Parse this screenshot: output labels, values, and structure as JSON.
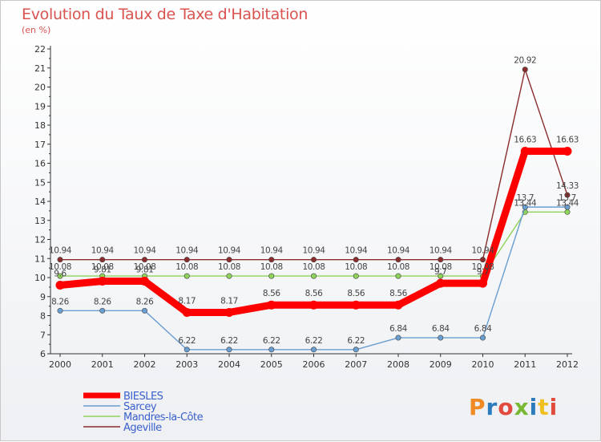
{
  "header": {
    "title": "Evolution du Taux de Taxe d'Habitation",
    "subtitle": "(en %)"
  },
  "logo": [
    "P",
    "r",
    "o",
    "x",
    "i",
    "t",
    "i"
  ],
  "chart_data": {
    "type": "line",
    "title": "Evolution du Taux de Taxe d'Habitation",
    "ylabel": "(en %)",
    "xlabel": "",
    "categories": [
      "2000",
      "2001",
      "2002",
      "2003",
      "2004",
      "2005",
      "2006",
      "2007",
      "2008",
      "2009",
      "2010",
      "2011",
      "2012"
    ],
    "ylim": [
      6,
      22
    ],
    "yticks": [
      "6",
      "7",
      "8",
      "9",
      "10",
      "11",
      "12",
      "13",
      "14",
      "15",
      "16",
      "17",
      "18",
      "19",
      "20",
      "21",
      "22"
    ],
    "legend_position": "bottom-left",
    "grid": false,
    "series": [
      {
        "name": "BIESLES",
        "color": "#ff0000",
        "values": [
          9.6,
          9.81,
          9.81,
          8.17,
          8.17,
          8.56,
          8.56,
          8.56,
          8.56,
          9.7,
          9.7,
          16.63,
          16.63
        ],
        "labels": [
          "9.6",
          "9.81",
          "9.81",
          "8.17",
          "8.17",
          "8.56",
          "8.56",
          "8.56",
          "8.56",
          "9.7",
          "9.7",
          "16.63",
          "16.63"
        ]
      },
      {
        "name": "Sarcey",
        "color": "#6a9ed1",
        "values": [
          8.26,
          8.26,
          8.26,
          6.22,
          6.22,
          6.22,
          6.22,
          6.22,
          6.84,
          6.84,
          6.84,
          13.7,
          13.7
        ],
        "labels": [
          "8.26",
          "8.26",
          "8.26",
          "6.22",
          "6.22",
          "6.22",
          "6.22",
          "6.22",
          "6.84",
          "6.84",
          "6.84",
          "13.7",
          "13.7"
        ]
      },
      {
        "name": "Mandres-la-Côte",
        "color": "#8fd35a",
        "values": [
          10.08,
          10.08,
          10.08,
          10.08,
          10.08,
          10.08,
          10.08,
          10.08,
          10.08,
          10.08,
          10.08,
          13.44,
          13.44
        ],
        "labels": [
          "10.08",
          "10.08",
          "10.08",
          "10.08",
          "10.08",
          "10.08",
          "10.08",
          "10.08",
          "10.08",
          "10.08",
          "10.08",
          "13.44",
          "13.44"
        ]
      },
      {
        "name": "Ageville",
        "color": "#8b2c2c",
        "values": [
          10.94,
          10.94,
          10.94,
          10.94,
          10.94,
          10.94,
          10.94,
          10.94,
          10.94,
          10.94,
          10.94,
          20.92,
          14.33
        ],
        "labels": [
          "10.94",
          "10.94",
          "10.94",
          "10.94",
          "10.94",
          "10.94",
          "10.94",
          "10.94",
          "10.94",
          "10.94",
          "10.94",
          "20.92",
          "14.33"
        ]
      }
    ]
  }
}
